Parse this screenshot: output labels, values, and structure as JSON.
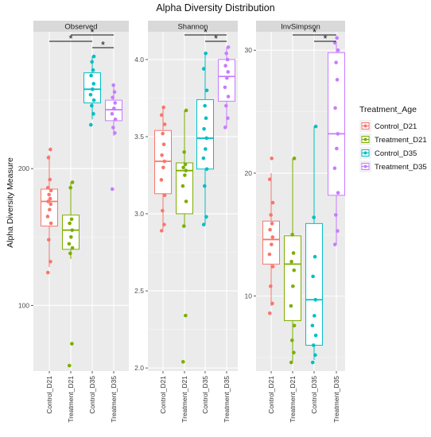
{
  "chart_data": {
    "type": "box",
    "title": "Alpha Diversity Distribution",
    "ylabel": "Alpha Diversity Measure",
    "categories": [
      "Control_D21",
      "Treatment_D21",
      "Control_D35",
      "Treatment_D35"
    ],
    "colors": [
      "#F8766D",
      "#7CAE00",
      "#00BFC4",
      "#C77CFF"
    ],
    "legend": {
      "title": "Treatment_Age",
      "position": "right",
      "entries": [
        "Control_D21",
        "Treatment_D21",
        "Control_D35",
        "Treatment_D35"
      ]
    },
    "significance_marker": "*",
    "panels": [
      {
        "name": "Observed",
        "ylim": [
          52,
          300
        ],
        "yticks": [
          100,
          200
        ],
        "ytick_labels": [
          "100",
          "200"
        ],
        "boxes": [
          {
            "q1": 158,
            "median": 176,
            "q3": 185,
            "min": 128,
            "max": 210
          },
          {
            "q1": 141,
            "median": 155,
            "q3": 166,
            "min": 134,
            "max": 190
          },
          {
            "q1": 248,
            "median": 258,
            "q3": 270,
            "min": 236,
            "max": 282
          },
          {
            "q1": 235,
            "median": 243,
            "q3": 250,
            "min": 224,
            "max": 262
          }
        ],
        "points": [
          [
            124,
            132,
            148,
            160,
            165,
            170,
            174,
            176,
            178,
            181,
            184,
            186,
            192,
            208,
            214
          ],
          [
            56,
            72,
            138,
            142,
            145,
            150,
            155,
            160,
            163,
            186,
            190
          ],
          [
            232,
            240,
            246,
            250,
            254,
            258,
            262,
            268,
            272,
            278,
            282
          ],
          [
            185,
            226,
            230,
            236,
            240,
            244,
            248,
            252,
            256,
            261
          ]
        ],
        "significance": [
          {
            "from": 0,
            "to": 2,
            "label": "*"
          },
          {
            "from": 1,
            "to": 3,
            "label": "*"
          },
          {
            "from": 2,
            "to": 3,
            "label": "*"
          }
        ]
      },
      {
        "name": "Shannon",
        "ylim": [
          1.98,
          4.18
        ],
        "yticks": [
          2.0,
          2.5,
          3.0,
          3.5,
          4.0
        ],
        "ytick_labels": [
          "2.0",
          "2.5",
          "3.0",
          "3.5",
          "4.0"
        ],
        "boxes": [
          {
            "q1": 3.13,
            "median": 3.34,
            "q3": 3.54,
            "min": 2.9,
            "max": 3.69
          },
          {
            "q1": 3.0,
            "median": 3.28,
            "q3": 3.33,
            "min": 2.92,
            "max": 3.67
          },
          {
            "q1": 3.29,
            "median": 3.49,
            "q3": 3.74,
            "min": 2.93,
            "max": 4.04
          },
          {
            "q1": 3.73,
            "median": 3.89,
            "q3": 4.0,
            "min": 3.56,
            "max": 4.08
          }
        ],
        "points": [
          [
            2.89,
            2.93,
            3.02,
            3.12,
            3.22,
            3.3,
            3.34,
            3.38,
            3.45,
            3.52,
            3.58,
            3.64,
            3.69
          ],
          [
            2.04,
            2.34,
            2.92,
            3.08,
            3.18,
            3.25,
            3.28,
            3.3,
            3.32,
            3.4,
            3.67
          ],
          [
            2.93,
            2.98,
            3.18,
            3.29,
            3.36,
            3.42,
            3.49,
            3.55,
            3.62,
            3.7,
            3.8,
            3.94,
            4.04
          ],
          [
            3.56,
            3.62,
            3.7,
            3.76,
            3.82,
            3.88,
            3.92,
            3.96,
            4.0,
            4.04,
            4.08
          ]
        ],
        "significance": [
          {
            "from": 1,
            "to": 3,
            "label": "*"
          },
          {
            "from": 2,
            "to": 3,
            "label": "*"
          }
        ]
      },
      {
        "name": "InvSimpson",
        "ylim": [
          3.9,
          31.5
        ],
        "yticks": [
          10,
          20,
          30
        ],
        "ytick_labels": [
          "10",
          "20",
          "30"
        ],
        "boxes": [
          {
            "q1": 12.6,
            "median": 14.6,
            "q3": 16.1,
            "min": 9.2,
            "max": 20.0
          },
          {
            "q1": 8.0,
            "median": 12.6,
            "q3": 14.9,
            "min": 4.7,
            "max": 21.2
          },
          {
            "q1": 6.0,
            "median": 9.7,
            "q3": 15.9,
            "min": 4.8,
            "max": 23.8
          },
          {
            "q1": 18.2,
            "median": 23.2,
            "q3": 29.8,
            "min": 14.2,
            "max": 30.5
          }
        ],
        "points": [
          [
            8.6,
            9.4,
            10.8,
            12.4,
            13.4,
            14.2,
            14.8,
            15.4,
            15.9,
            16.6,
            17.6,
            19.5,
            21.2
          ],
          [
            4.6,
            5.4,
            6.4,
            7.6,
            9.2,
            10.8,
            12.1,
            12.8,
            13.5,
            15.0,
            21.2
          ],
          [
            4.6,
            5.2,
            6.0,
            6.8,
            7.6,
            8.4,
            9.7,
            11.6,
            13.2,
            16.4,
            23.8
          ],
          [
            14.2,
            15.3,
            16.6,
            18.4,
            20.4,
            22.0,
            23.2,
            25.3,
            27.6,
            29.0,
            30.0,
            30.6,
            31.0
          ]
        ],
        "significance": [
          {
            "from": 1,
            "to": 3,
            "label": "*"
          },
          {
            "from": 2,
            "to": 3,
            "label": "*"
          }
        ]
      }
    ]
  }
}
